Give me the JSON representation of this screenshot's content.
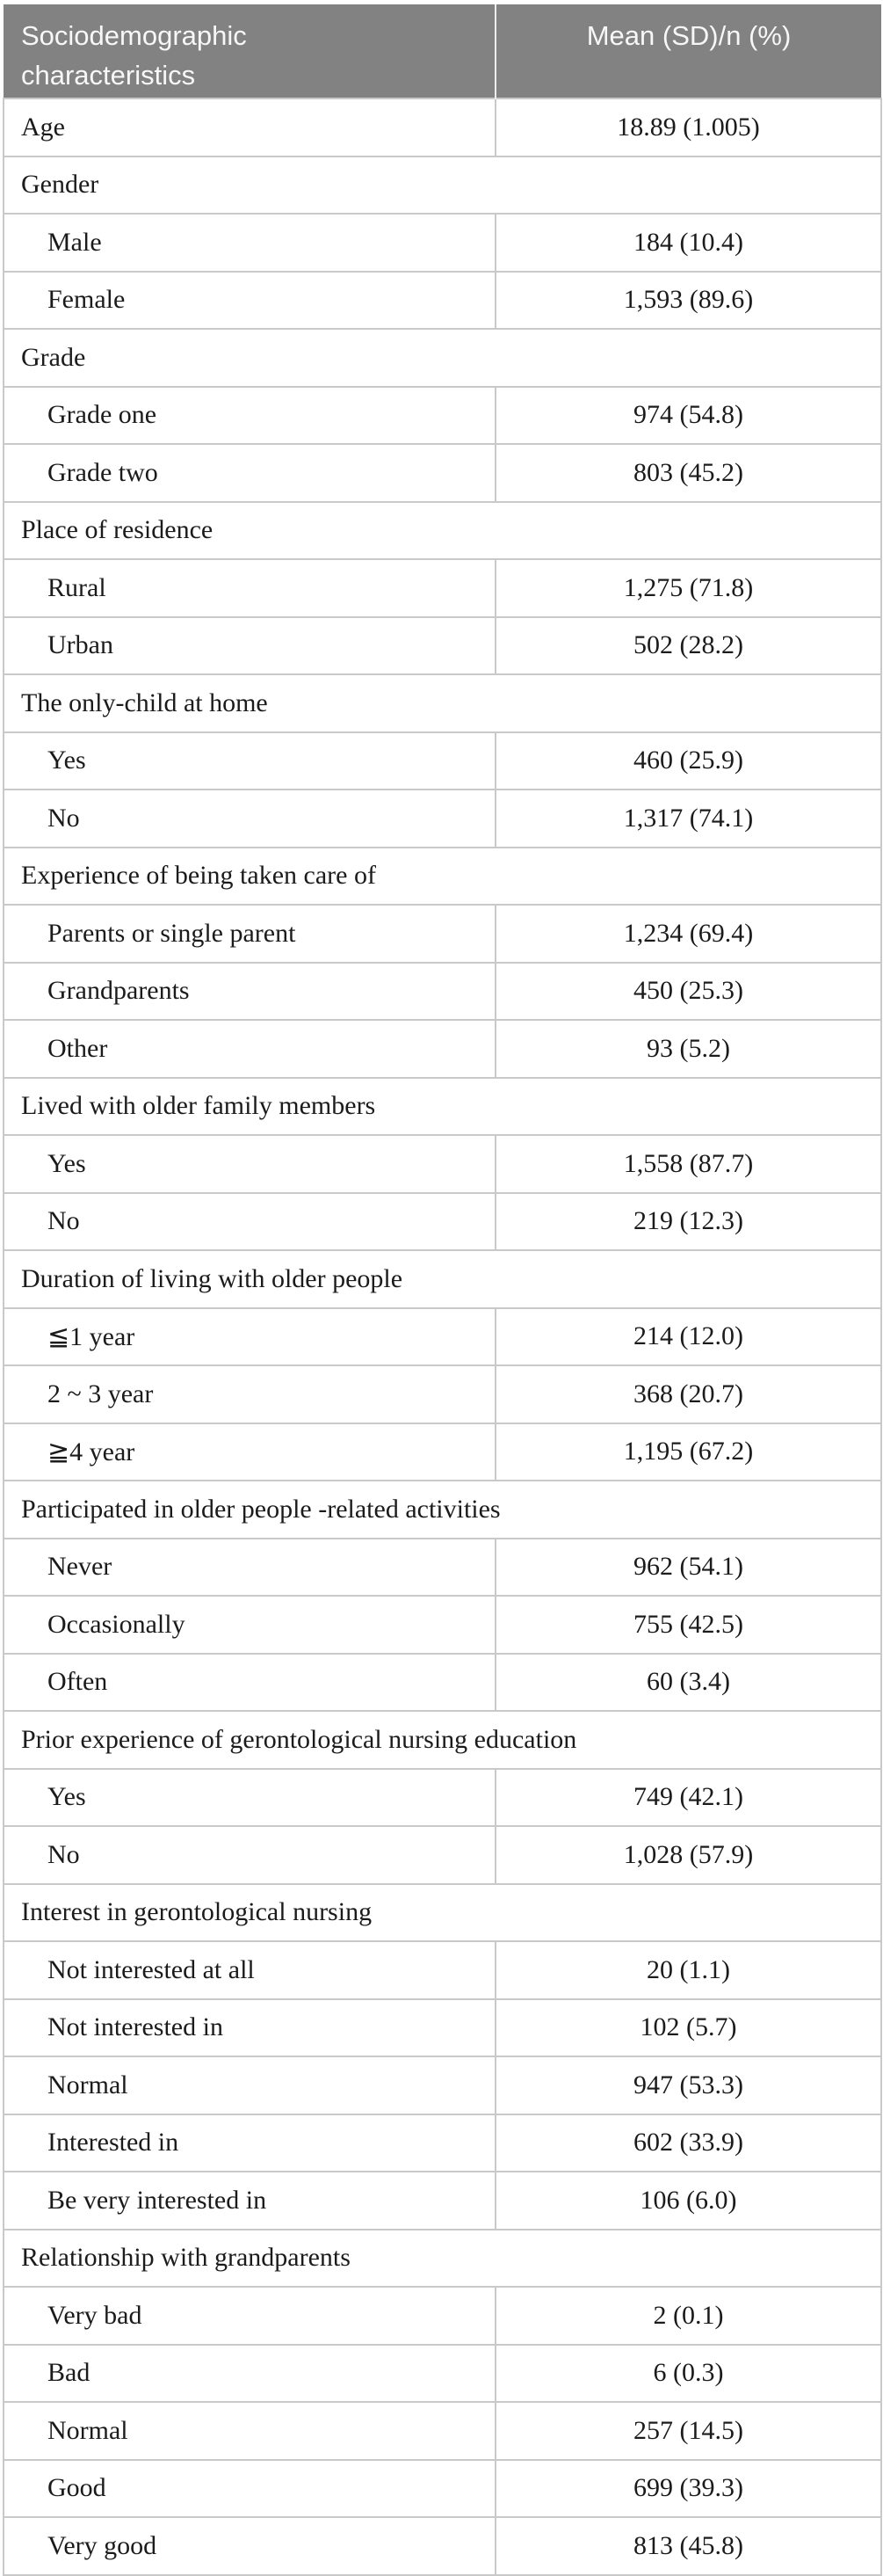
{
  "colors": {
    "header_bg": "#828282",
    "header_text": "#f7f7f7",
    "header_divider": "#ededed",
    "row_line": "#c9c9c9",
    "body_text": "#1b1b1b"
  },
  "table": {
    "header": {
      "col1": "Sociodemographic characteristics",
      "col2": "Mean (SD)/n (%)"
    },
    "rows": [
      {
        "type": "data",
        "indent": 0,
        "label": "Age",
        "value": "18.89 (1.005)"
      },
      {
        "type": "category",
        "label": "Gender"
      },
      {
        "type": "data",
        "indent": 1,
        "label": "Male",
        "value": "184 (10.4)"
      },
      {
        "type": "data",
        "indent": 1,
        "label": "Female",
        "value": "1,593 (89.6)"
      },
      {
        "type": "category",
        "label": "Grade"
      },
      {
        "type": "data",
        "indent": 1,
        "label": "Grade one",
        "value": "974 (54.8)"
      },
      {
        "type": "data",
        "indent": 1,
        "label": "Grade two",
        "value": "803 (45.2)"
      },
      {
        "type": "category",
        "label": "Place of residence"
      },
      {
        "type": "data",
        "indent": 1,
        "label": "Rural",
        "value": "1,275 (71.8)"
      },
      {
        "type": "data",
        "indent": 1,
        "label": "Urban",
        "value": "502 (28.2)"
      },
      {
        "type": "category",
        "label": "The only-child at home"
      },
      {
        "type": "data",
        "indent": 1,
        "label": "Yes",
        "value": "460 (25.9)"
      },
      {
        "type": "data",
        "indent": 1,
        "label": "No",
        "value": "1,317 (74.1)"
      },
      {
        "type": "category",
        "label": "Experience of being taken care of"
      },
      {
        "type": "data",
        "indent": 1,
        "label": "Parents or single parent",
        "value": "1,234 (69.4)"
      },
      {
        "type": "data",
        "indent": 1,
        "label": "Grandparents",
        "value": "450 (25.3)"
      },
      {
        "type": "data",
        "indent": 1,
        "label": "Other",
        "value": "93 (5.2)"
      },
      {
        "type": "category",
        "label": "Lived with older family members"
      },
      {
        "type": "data",
        "indent": 1,
        "label": "Yes",
        "value": "1,558 (87.7)"
      },
      {
        "type": "data",
        "indent": 1,
        "label": "No",
        "value": "219 (12.3)"
      },
      {
        "type": "category",
        "label": "Duration of living with older people"
      },
      {
        "type": "data",
        "indent": 1,
        "label": "≦1 year",
        "value": "214 (12.0)"
      },
      {
        "type": "data",
        "indent": 1,
        "label": "2 ~ 3 year",
        "value": "368 (20.7)"
      },
      {
        "type": "data",
        "indent": 1,
        "label": "≧4 year",
        "value": "1,195 (67.2)"
      },
      {
        "type": "category",
        "label": "Participated in older people -related activities"
      },
      {
        "type": "data",
        "indent": 1,
        "label": "Never",
        "value": "962 (54.1)"
      },
      {
        "type": "data",
        "indent": 1,
        "label": "Occasionally",
        "value": "755 (42.5)"
      },
      {
        "type": "data",
        "indent": 1,
        "label": "Often",
        "value": "60 (3.4)"
      },
      {
        "type": "category",
        "label": "Prior experience of gerontological nursing education"
      },
      {
        "type": "data",
        "indent": 1,
        "label": "Yes",
        "value": "749 (42.1)"
      },
      {
        "type": "data",
        "indent": 1,
        "label": "No",
        "value": "1,028 (57.9)"
      },
      {
        "type": "category",
        "label": "Interest in gerontological nursing"
      },
      {
        "type": "data",
        "indent": 1,
        "label": "Not interested at all",
        "value": "20 (1.1)"
      },
      {
        "type": "data",
        "indent": 1,
        "label": "Not interested in",
        "value": "102 (5.7)"
      },
      {
        "type": "data",
        "indent": 1,
        "label": "Normal",
        "value": "947 (53.3)"
      },
      {
        "type": "data",
        "indent": 1,
        "label": "Interested in",
        "value": "602 (33.9)"
      },
      {
        "type": "data",
        "indent": 1,
        "label": "Be very interested in",
        "value": "106 (6.0)"
      },
      {
        "type": "category",
        "label": "Relationship with grandparents"
      },
      {
        "type": "data",
        "indent": 1,
        "label": "Very bad",
        "value": "2 (0.1)"
      },
      {
        "type": "data",
        "indent": 1,
        "label": "Bad",
        "value": "6 (0.3)"
      },
      {
        "type": "data",
        "indent": 1,
        "label": "Normal",
        "value": "257 (14.5)"
      },
      {
        "type": "data",
        "indent": 1,
        "label": "Good",
        "value": "699 (39.3)"
      },
      {
        "type": "data",
        "indent": 1,
        "label": "Very good",
        "value": "813 (45.8)"
      }
    ]
  }
}
